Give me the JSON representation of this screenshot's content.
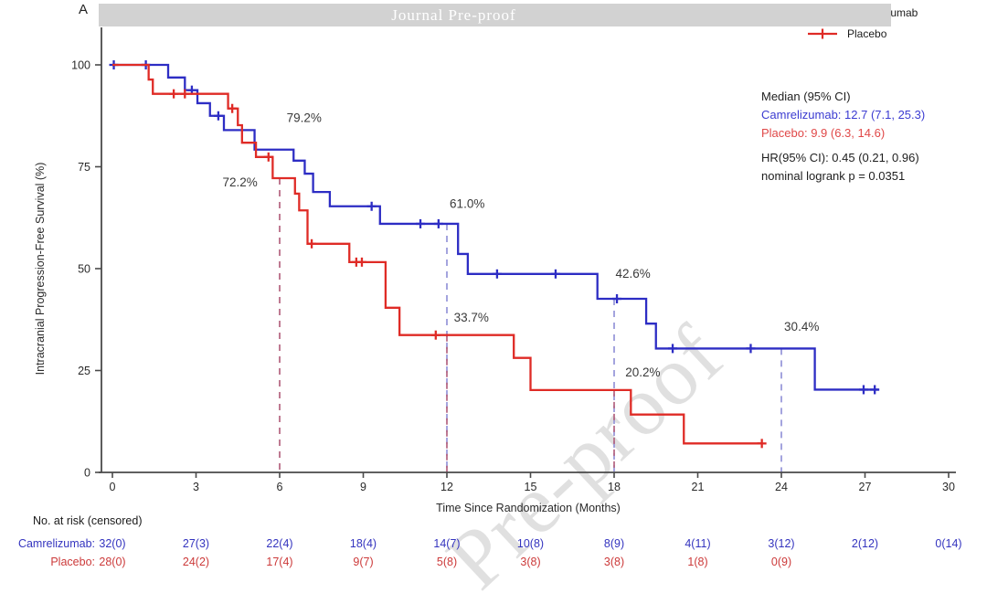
{
  "panel_label": "A",
  "banner": {
    "title": "Journal Pre-proof",
    "bg": "#d2d2d2",
    "text_color": "#ffffff"
  },
  "watermark": {
    "text": "Pre-proof"
  },
  "legend": [
    {
      "label": "Camrelizumab",
      "color": "#2d2dc4"
    },
    {
      "label": "Placebo",
      "color": "#df2b26"
    }
  ],
  "stats": {
    "line1": "Median (95% CI)",
    "line2": "Camrelizumab: 12.7 (7.1, 25.3)",
    "line3": "Placebo: 9.9 (6.3, 14.6)",
    "line4": "HR(95% CI): 0.45 (0.21, 0.96)",
    "line5": "nominal logrank p = 0.0351"
  },
  "colors": {
    "camrelizumab": "#2d2dc4",
    "placebo": "#df2b26",
    "red_dash": "#b4637f",
    "blue_dash": "#9595d8",
    "annotation": "#3a3a3a",
    "axis": "#4a4a4a",
    "tick_text": "#2a2a2a",
    "risk_blue": "#3434bf",
    "risk_red": "#cc3a3a",
    "stats_blue": "#3b3bd1",
    "stats_red": "#e04848"
  },
  "chart_data": {
    "type": "line",
    "subtype": "kaplan-meier-step",
    "title": "Intracranial progression-free survival",
    "xlabel": "Time Since Randomization (Months)",
    "ylabel": "Intracranial Progression-Free Survival (%)",
    "xlim": [
      0,
      30
    ],
    "ylim": [
      0,
      100
    ],
    "x_ticks": [
      0,
      3,
      6,
      9,
      12,
      15,
      18,
      21,
      24,
      27,
      30
    ],
    "y_ticks": [
      0,
      25,
      50,
      75,
      100
    ],
    "grid": false,
    "legend_position": "top-right",
    "series": [
      {
        "name": "Camrelizumab",
        "color_key": "camrelizumab",
        "start": [
          0,
          100
        ],
        "steps": [
          [
            2.0,
            96.9
          ],
          [
            2.6,
            93.8
          ],
          [
            3.05,
            90.6
          ],
          [
            3.5,
            87.5
          ],
          [
            4.0,
            84.0
          ],
          [
            5.1,
            79.2
          ],
          [
            6.5,
            76.5
          ],
          [
            6.9,
            73.3
          ],
          [
            7.2,
            68.8
          ],
          [
            7.8,
            65.3
          ],
          [
            9.6,
            61.0
          ],
          [
            12.4,
            53.6
          ],
          [
            12.75,
            48.7
          ],
          [
            17.4,
            42.6
          ],
          [
            19.15,
            36.5
          ],
          [
            19.5,
            30.4
          ],
          [
            25.2,
            20.3
          ]
        ],
        "end_time": 27.5,
        "censors": [
          [
            0.05,
            100
          ],
          [
            1.2,
            100
          ],
          [
            2.85,
            93.8
          ],
          [
            3.8,
            87.5
          ],
          [
            9.3,
            65.3
          ],
          [
            11.05,
            61.0
          ],
          [
            11.7,
            61.0
          ],
          [
            13.8,
            48.7
          ],
          [
            15.9,
            48.7
          ],
          [
            18.1,
            42.6
          ],
          [
            20.1,
            30.4
          ],
          [
            22.9,
            30.4
          ],
          [
            26.95,
            20.3
          ],
          [
            27.35,
            20.3
          ]
        ]
      },
      {
        "name": "Placebo",
        "color_key": "placebo",
        "start": [
          0,
          100
        ],
        "steps": [
          [
            1.3,
            96.4
          ],
          [
            1.45,
            92.9
          ],
          [
            4.15,
            89.3
          ],
          [
            4.5,
            85.2
          ],
          [
            4.65,
            80.9
          ],
          [
            5.15,
            77.4
          ],
          [
            5.75,
            72.2
          ],
          [
            6.55,
            68.4
          ],
          [
            6.7,
            64.3
          ],
          [
            7.0,
            56.1
          ],
          [
            8.5,
            51.6
          ],
          [
            9.8,
            40.4
          ],
          [
            10.3,
            33.7
          ],
          [
            14.4,
            28.1
          ],
          [
            15.0,
            20.2
          ],
          [
            18.6,
            14.2
          ],
          [
            20.5,
            7.1
          ]
        ],
        "end_time": 23.3,
        "censors": [
          [
            2.2,
            92.9
          ],
          [
            2.6,
            92.9
          ],
          [
            4.3,
            89.3
          ],
          [
            5.6,
            77.4
          ],
          [
            7.15,
            56.1
          ],
          [
            8.75,
            51.6
          ],
          [
            8.95,
            51.6
          ],
          [
            11.6,
            33.7
          ],
          [
            23.3,
            7.1
          ]
        ]
      }
    ],
    "annotations": [
      {
        "text": "79.2%",
        "month": 6.25,
        "pct": 86.8
      },
      {
        "text": "72.2%",
        "month": 3.95,
        "pct": 71.0
      },
      {
        "text": "61.0%",
        "month": 12.1,
        "pct": 65.7
      },
      {
        "text": "33.7%",
        "month": 12.25,
        "pct": 37.8
      },
      {
        "text": "42.6%",
        "month": 18.05,
        "pct": 48.6
      },
      {
        "text": "20.2%",
        "month": 18.4,
        "pct": 24.3
      },
      {
        "text": "30.4%",
        "month": 24.1,
        "pct": 35.6
      }
    ],
    "ref_lines": [
      {
        "month": 6,
        "from_pct": 72.2,
        "color_key": "red_dash"
      },
      {
        "month": 12,
        "from_pct": 61.0,
        "color_key": "blue_dash"
      },
      {
        "month": 12,
        "from_pct": 33.7,
        "color_key": "red_dash"
      },
      {
        "month": 18,
        "from_pct": 42.6,
        "color_key": "blue_dash"
      },
      {
        "month": 18,
        "from_pct": 20.2,
        "color_key": "red_dash"
      },
      {
        "month": 24,
        "from_pct": 30.4,
        "color_key": "blue_dash"
      }
    ]
  },
  "risk_table": {
    "header": "No. at risk (censored)",
    "rows": [
      {
        "label": "Camrelizumab:",
        "color_key": "risk_blue",
        "values": [
          "32(0)",
          "27(3)",
          "22(4)",
          "18(4)",
          "14(7)",
          "10(8)",
          "8(9)",
          "4(11)",
          "3(12)",
          "2(12)",
          "0(14)"
        ]
      },
      {
        "label": "Placebo:",
        "color_key": "risk_red",
        "values": [
          "28(0)",
          "24(2)",
          "17(4)",
          "9(7)",
          "5(8)",
          "3(8)",
          "3(8)",
          "1(8)",
          "0(9)"
        ]
      }
    ]
  }
}
